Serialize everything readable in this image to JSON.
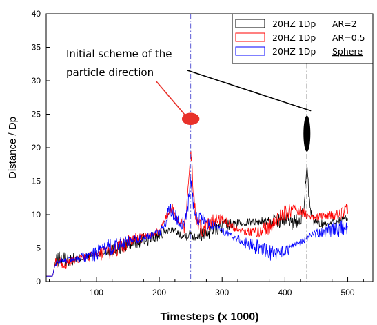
{
  "chart_data": {
    "type": "line",
    "title": "",
    "xlabel": "Timesteps (x 1000)",
    "ylabel": "Distance / Dp",
    "xlim": [
      20,
      540
    ],
    "ylim": [
      0,
      40
    ],
    "xticks": [
      100,
      200,
      300,
      400,
      500
    ],
    "yticks": [
      0,
      5,
      10,
      15,
      20,
      25,
      30,
      35,
      40
    ],
    "grid": false,
    "legend_position": "top-right",
    "legend": [
      {
        "config": "20HZ 1Dp",
        "shape": "AR=2",
        "color": "#000000",
        "underline": false
      },
      {
        "config": "20HZ 1Dp",
        "shape": "AR=0.5",
        "color": "#ff0000",
        "underline": false
      },
      {
        "config": "20HZ 1Dp",
        "shape": "Sphere",
        "color": "#0000ff",
        "underline": true
      }
    ],
    "annotation": {
      "line1": "Initial scheme of the",
      "line2": "particle direction",
      "red_ellipse": {
        "x": 250,
        "y": 24.3,
        "rx_data": 14,
        "ry_data": 0.9,
        "color": "#e8312a"
      },
      "black_ellipse": {
        "x": 435,
        "y": 22.1,
        "rx_data": 5.5,
        "ry_data": 2.7,
        "color": "#000000"
      }
    },
    "vlines": [
      {
        "x": 250,
        "color": "#5b5bd6",
        "style": "dashdot"
      },
      {
        "x": 435,
        "color": "#000000",
        "style": "dashdot"
      }
    ],
    "series": [
      {
        "name": "AR=2",
        "color": "#000000",
        "x": [
          20,
          30,
          34,
          40,
          60,
          80,
          100,
          120,
          140,
          160,
          180,
          200,
          210,
          220,
          230,
          240,
          245,
          250,
          255,
          260,
          270,
          280,
          300,
          320,
          340,
          360,
          380,
          400,
          410,
          420,
          425,
          430,
          435,
          440,
          445,
          450,
          460,
          470,
          480,
          490,
          500
        ],
        "y": [
          0.8,
          0.8,
          2.5,
          3.4,
          3.3,
          3.6,
          4.0,
          4.6,
          5.2,
          5.8,
          6.3,
          6.8,
          7.4,
          7.8,
          7.2,
          6.8,
          7.0,
          7.2,
          6.9,
          7.0,
          7.3,
          7.6,
          8.2,
          8.6,
          8.9,
          9.0,
          9.0,
          9.2,
          8.9,
          9.1,
          9.5,
          11.0,
          17.0,
          10.5,
          9.2,
          8.8,
          8.6,
          8.7,
          8.9,
          9.3,
          9.6
        ]
      },
      {
        "name": "AR=0.5",
        "color": "#ff0000",
        "x": [
          20,
          30,
          34,
          40,
          50,
          60,
          80,
          100,
          120,
          140,
          160,
          180,
          200,
          210,
          220,
          230,
          240,
          245,
          250,
          255,
          260,
          270,
          280,
          300,
          320,
          340,
          360,
          380,
          400,
          420,
          440,
          460,
          480,
          490,
          500
        ],
        "y": [
          0.8,
          0.8,
          2.5,
          3.3,
          2.4,
          3.0,
          3.6,
          3.9,
          4.4,
          5.3,
          6.2,
          6.9,
          7.4,
          9.5,
          11.0,
          9.0,
          8.0,
          12.0,
          20.5,
          12.0,
          8.5,
          7.5,
          8.8,
          9.5,
          8.0,
          7.4,
          7.5,
          8.5,
          10.2,
          10.9,
          9.5,
          9.8,
          9.8,
          10.1,
          10.6
        ]
      },
      {
        "name": "Sphere",
        "color": "#0000ff",
        "x": [
          20,
          30,
          34,
          40,
          60,
          80,
          100,
          120,
          140,
          160,
          180,
          200,
          210,
          215,
          220,
          230,
          240,
          245,
          250,
          255,
          260,
          270,
          280,
          300,
          320,
          340,
          360,
          380,
          400,
          420,
          440,
          460,
          480,
          490,
          500
        ],
        "y": [
          0.8,
          0.8,
          2.5,
          3.2,
          3.3,
          3.6,
          4.2,
          5.1,
          5.7,
          6.2,
          6.6,
          7.3,
          8.8,
          11.0,
          10.4,
          9.2,
          8.8,
          10.6,
          15.4,
          11.0,
          9.5,
          9.2,
          8.5,
          7.6,
          6.6,
          5.6,
          5.0,
          4.2,
          4.4,
          5.5,
          6.8,
          7.5,
          7.8,
          7.9,
          7.5
        ]
      }
    ]
  }
}
